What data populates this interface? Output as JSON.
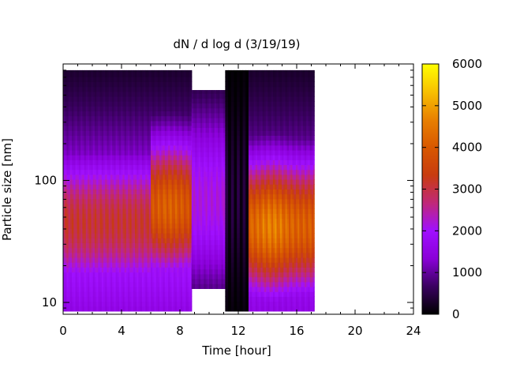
{
  "chart_data": {
    "type": "heatmap",
    "title": "dN / d log d (3/19/19)",
    "xlabel": "Time [hour]",
    "ylabel": "Particle size [nm]",
    "xlim": [
      0,
      24
    ],
    "ylim": [
      8,
      900
    ],
    "y_scale": "log",
    "x_ticks": [
      0,
      4,
      8,
      12,
      16,
      20,
      24
    ],
    "x_tick_labels": [
      "0",
      "4",
      "8",
      "12",
      "16",
      "20",
      "24"
    ],
    "y_ticks": [
      10,
      100
    ],
    "y_tick_labels": [
      "10",
      "100"
    ],
    "colorbar": {
      "range": [
        0,
        6000
      ],
      "ticks": [
        0,
        1000,
        2000,
        3000,
        4000,
        5000,
        6000
      ],
      "tick_labels": [
        "0",
        "1000",
        "2000",
        "3000",
        "4000",
        "5000",
        "6000"
      ],
      "colormap": "gnuplot",
      "palette": [
        "#000000",
        "#3a0060",
        "#8a00d8",
        "#a010ff",
        "#c02878",
        "#c83c10",
        "#d85800",
        "#e88000",
        "#f8c000",
        "#ffff00"
      ]
    },
    "grid": false,
    "segments": [
      {
        "x_start": 0.0,
        "x_end": 8.8,
        "d_min": 8.5,
        "d_max": 800,
        "profile": "morning"
      },
      {
        "x_start": 8.8,
        "x_end": 11.1,
        "d_min": 13,
        "d_max": 550,
        "profile": "gap"
      },
      {
        "x_start": 11.1,
        "x_end": 12.7,
        "d_min": 8.5,
        "d_max": 800,
        "profile": "interrupted"
      },
      {
        "x_start": 12.7,
        "x_end": 17.2,
        "d_min": 8.5,
        "d_max": 800,
        "profile": "afternoon"
      }
    ]
  }
}
